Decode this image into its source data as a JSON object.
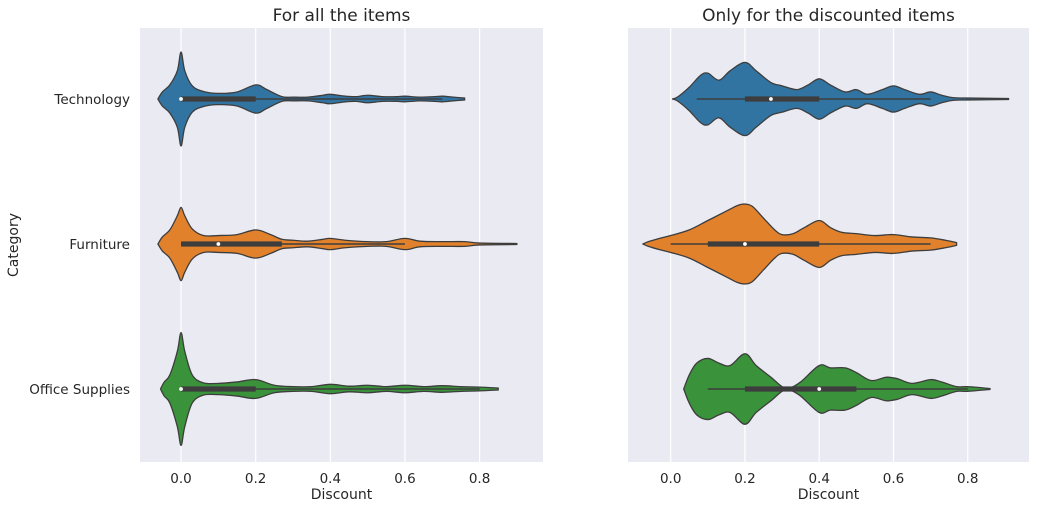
{
  "ylabel": "Category",
  "categories": [
    "Technology",
    "Furniture",
    "Office Supplies"
  ],
  "colors": {
    "background": "#eaeaf2",
    "grid": "#ffffff",
    "edge": "#3d3d3d",
    "Technology": "#3274a1",
    "Furniture": "#e1812c",
    "Office Supplies": "#3a923a"
  },
  "chart_data": [
    {
      "type": "violin",
      "title": "For all the items",
      "xlabel": "Discount",
      "ylabel": "Category",
      "categories": [
        "Technology",
        "Furniture",
        "Office Supplies"
      ],
      "xlim": [
        -0.11,
        0.97
      ],
      "xticks": [
        0.0,
        0.2,
        0.4,
        0.6,
        0.8
      ],
      "xtick_labels": [
        "0.0",
        "0.2",
        "0.4",
        "0.6",
        "0.8"
      ],
      "grid": true,
      "violins": [
        {
          "category": "Technology",
          "density": [
            [
              -0.062,
              0
            ],
            [
              -0.05,
              0.15
            ],
            [
              -0.03,
              0.3
            ],
            [
              -0.01,
              0.6
            ],
            [
              0.0,
              1.0
            ],
            [
              0.01,
              0.6
            ],
            [
              0.03,
              0.28
            ],
            [
              0.06,
              0.16
            ],
            [
              0.1,
              0.12
            ],
            [
              0.15,
              0.15
            ],
            [
              0.2,
              0.3
            ],
            [
              0.23,
              0.2
            ],
            [
              0.27,
              0.05
            ],
            [
              0.3,
              0.04
            ],
            [
              0.34,
              0.04
            ],
            [
              0.38,
              0.08
            ],
            [
              0.4,
              0.1
            ],
            [
              0.44,
              0.06
            ],
            [
              0.47,
              0.05
            ],
            [
              0.5,
              0.08
            ],
            [
              0.54,
              0.05
            ],
            [
              0.58,
              0.05
            ],
            [
              0.6,
              0.06
            ],
            [
              0.64,
              0.04
            ],
            [
              0.68,
              0.05
            ],
            [
              0.7,
              0.06
            ],
            [
              0.73,
              0.04
            ],
            [
              0.76,
              0.02
            ]
          ],
          "box": {
            "q1": 0.0,
            "median": 0.0,
            "q3": 0.2,
            "whisker_low": 0.0,
            "whisker_high": 0.7
          }
        },
        {
          "category": "Furniture",
          "density": [
            [
              -0.062,
              0
            ],
            [
              -0.05,
              0.15
            ],
            [
              -0.03,
              0.3
            ],
            [
              -0.01,
              0.6
            ],
            [
              0.0,
              0.78
            ],
            [
              0.01,
              0.6
            ],
            [
              0.03,
              0.32
            ],
            [
              0.06,
              0.18
            ],
            [
              0.1,
              0.18
            ],
            [
              0.15,
              0.2
            ],
            [
              0.2,
              0.3
            ],
            [
              0.24,
              0.2
            ],
            [
              0.27,
              0.1
            ],
            [
              0.3,
              0.08
            ],
            [
              0.34,
              0.06
            ],
            [
              0.38,
              0.1
            ],
            [
              0.4,
              0.12
            ],
            [
              0.44,
              0.08
            ],
            [
              0.5,
              0.05
            ],
            [
              0.55,
              0.05
            ],
            [
              0.6,
              0.12
            ],
            [
              0.64,
              0.06
            ],
            [
              0.7,
              0.05
            ],
            [
              0.76,
              0.05
            ],
            [
              0.8,
              0.02
            ],
            [
              0.9,
              0.01
            ]
          ],
          "box": {
            "q1": 0.0,
            "median": 0.1,
            "q3": 0.27,
            "whisker_low": 0.0,
            "whisker_high": 0.6
          }
        },
        {
          "category": "Office Supplies",
          "density": [
            [
              -0.055,
              0
            ],
            [
              -0.045,
              0.15
            ],
            [
              -0.03,
              0.3
            ],
            [
              -0.01,
              0.8
            ],
            [
              0.0,
              1.2
            ],
            [
              0.01,
              0.8
            ],
            [
              0.03,
              0.3
            ],
            [
              0.06,
              0.13
            ],
            [
              0.1,
              0.12
            ],
            [
              0.15,
              0.15
            ],
            [
              0.2,
              0.2
            ],
            [
              0.25,
              0.08
            ],
            [
              0.3,
              0.05
            ],
            [
              0.35,
              0.05
            ],
            [
              0.4,
              0.1
            ],
            [
              0.45,
              0.06
            ],
            [
              0.5,
              0.08
            ],
            [
              0.55,
              0.05
            ],
            [
              0.6,
              0.08
            ],
            [
              0.65,
              0.05
            ],
            [
              0.7,
              0.07
            ],
            [
              0.75,
              0.05
            ],
            [
              0.8,
              0.04
            ],
            [
              0.85,
              0.02
            ]
          ],
          "box": {
            "q1": 0.0,
            "median": 0.0,
            "q3": 0.2,
            "whisker_low": 0.0,
            "whisker_high": 0.8
          }
        }
      ]
    },
    {
      "type": "violin",
      "title": "Only for the discounted items",
      "xlabel": "Discount",
      "ylabel": "",
      "categories": [
        "Technology",
        "Furniture",
        "Office Supplies"
      ],
      "xlim": [
        -0.115,
        0.965
      ],
      "xticks": [
        0.0,
        0.2,
        0.4,
        0.6,
        0.8
      ],
      "xtick_labels": [
        "0.0",
        "0.2",
        "0.4",
        "0.6",
        "0.8"
      ],
      "grid": true,
      "violins": [
        {
          "category": "Technology",
          "density": [
            [
              0.005,
              0
            ],
            [
              0.02,
              0.05
            ],
            [
              0.05,
              0.25
            ],
            [
              0.08,
              0.5
            ],
            [
              0.1,
              0.55
            ],
            [
              0.13,
              0.4
            ],
            [
              0.16,
              0.6
            ],
            [
              0.2,
              0.78
            ],
            [
              0.23,
              0.6
            ],
            [
              0.27,
              0.35
            ],
            [
              0.3,
              0.28
            ],
            [
              0.34,
              0.2
            ],
            [
              0.37,
              0.3
            ],
            [
              0.4,
              0.43
            ],
            [
              0.43,
              0.3
            ],
            [
              0.47,
              0.15
            ],
            [
              0.5,
              0.2
            ],
            [
              0.53,
              0.1
            ],
            [
              0.57,
              0.2
            ],
            [
              0.6,
              0.28
            ],
            [
              0.63,
              0.2
            ],
            [
              0.67,
              0.1
            ],
            [
              0.7,
              0.15
            ],
            [
              0.73,
              0.08
            ],
            [
              0.76,
              0.03
            ],
            [
              0.8,
              0.02
            ],
            [
              0.91,
              0.01
            ]
          ],
          "box": {
            "q1": 0.2,
            "median": 0.27,
            "q3": 0.4,
            "whisker_low": 0.07,
            "whisker_high": 0.7
          }
        },
        {
          "category": "Furniture",
          "density": [
            [
              -0.075,
              0
            ],
            [
              -0.06,
              0.05
            ],
            [
              -0.03,
              0.12
            ],
            [
              0.0,
              0.18
            ],
            [
              0.05,
              0.3
            ],
            [
              0.1,
              0.5
            ],
            [
              0.15,
              0.7
            ],
            [
              0.18,
              0.82
            ],
            [
              0.2,
              0.85
            ],
            [
              0.22,
              0.8
            ],
            [
              0.25,
              0.55
            ],
            [
              0.28,
              0.3
            ],
            [
              0.3,
              0.2
            ],
            [
              0.33,
              0.22
            ],
            [
              0.36,
              0.35
            ],
            [
              0.4,
              0.5
            ],
            [
              0.43,
              0.35
            ],
            [
              0.46,
              0.25
            ],
            [
              0.5,
              0.22
            ],
            [
              0.55,
              0.18
            ],
            [
              0.6,
              0.2
            ],
            [
              0.65,
              0.15
            ],
            [
              0.7,
              0.13
            ],
            [
              0.74,
              0.08
            ],
            [
              0.77,
              0.03
            ]
          ],
          "box": {
            "q1": 0.1,
            "median": 0.2,
            "q3": 0.4,
            "whisker_low": 0.0,
            "whisker_high": 0.7
          }
        },
        {
          "category": "Office Supplies",
          "density": [
            [
              0.035,
              0
            ],
            [
              0.05,
              0.3
            ],
            [
              0.07,
              0.55
            ],
            [
              0.1,
              0.65
            ],
            [
              0.13,
              0.55
            ],
            [
              0.16,
              0.5
            ],
            [
              0.2,
              0.75
            ],
            [
              0.23,
              0.5
            ],
            [
              0.27,
              0.25
            ],
            [
              0.3,
              0.05
            ],
            [
              0.32,
              0.02
            ],
            [
              0.35,
              0.15
            ],
            [
              0.4,
              0.5
            ],
            [
              0.43,
              0.45
            ],
            [
              0.47,
              0.45
            ],
            [
              0.5,
              0.35
            ],
            [
              0.54,
              0.18
            ],
            [
              0.58,
              0.25
            ],
            [
              0.61,
              0.22
            ],
            [
              0.65,
              0.12
            ],
            [
              0.7,
              0.2
            ],
            [
              0.73,
              0.15
            ],
            [
              0.77,
              0.05
            ],
            [
              0.8,
              0.05
            ],
            [
              0.86,
              0.01
            ]
          ],
          "box": {
            "q1": 0.2,
            "median": 0.4,
            "q3": 0.5,
            "whisker_low": 0.1,
            "whisker_high": 0.8
          }
        }
      ]
    }
  ]
}
